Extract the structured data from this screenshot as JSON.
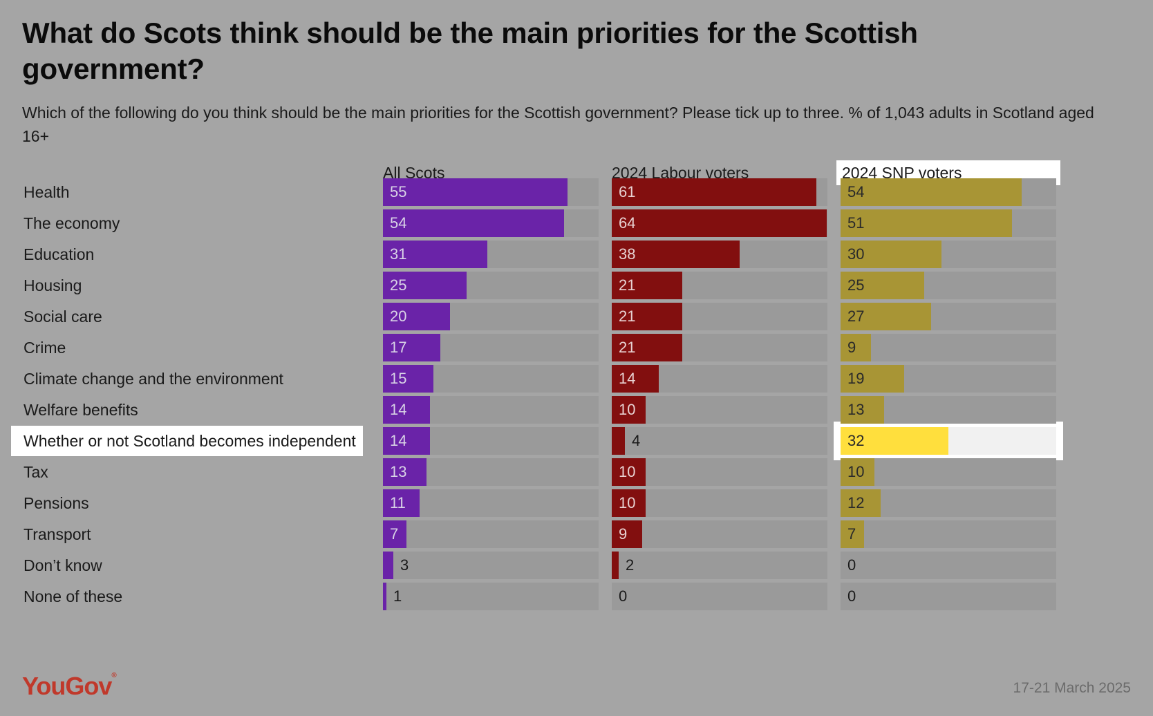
{
  "brand": "YouGov",
  "date": "17-21 March 2025",
  "colors": {
    "all_scots": "#6a23a8",
    "labour": "#820f0f",
    "snp": "#a89535",
    "snp_highlight": "#ffdf3d",
    "track": "#9a9a9a",
    "track_highlight": "#f1f1f1"
  },
  "chart_data": {
    "type": "bar",
    "title": "What do Scots think should be the main priorities for the Scottish government?",
    "subtitle": "Which of the following do you think should be the main priorities for the Scottish government? Please tick up to three. % of 1,043 adults in Scotland aged 16+",
    "categories": [
      "Health",
      "The economy",
      "Education",
      "Housing",
      "Social care",
      "Crime",
      "Climate change and the environment",
      "Welfare benefits",
      "Whether or not Scotland becomes independent",
      "Tax",
      "Pensions",
      "Transport",
      "Don’t know",
      "None of these"
    ],
    "highlight_category": "Whether or not Scotland becomes independent",
    "highlight_series": "2024 SNP voters",
    "xlim": [
      0,
      64
    ],
    "series": [
      {
        "name": "All Scots",
        "values": [
          55,
          54,
          31,
          25,
          20,
          17,
          15,
          14,
          14,
          13,
          11,
          7,
          3,
          1
        ]
      },
      {
        "name": "2024 Labour voters",
        "values": [
          61,
          64,
          38,
          21,
          21,
          21,
          14,
          10,
          4,
          10,
          10,
          9,
          2,
          0
        ]
      },
      {
        "name": "2024 SNP voters",
        "values": [
          54,
          51,
          30,
          25,
          27,
          9,
          19,
          13,
          32,
          10,
          12,
          7,
          0,
          0
        ]
      }
    ]
  }
}
